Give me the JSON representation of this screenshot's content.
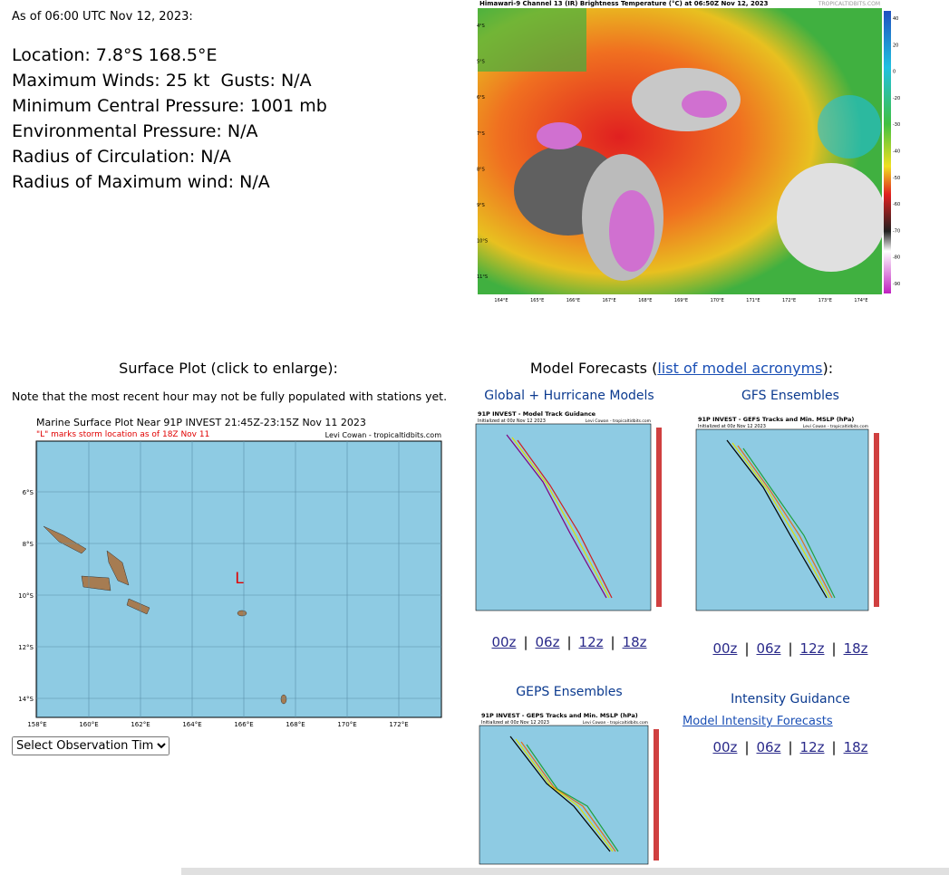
{
  "header": {
    "timestamp": "As of 06:00 UTC Nov 12, 2023:"
  },
  "storm_info": [
    "Location: 7.8°S 168.5°E",
    "Maximum Winds: 25 kt  Gusts: N/A",
    "Minimum Central Pressure: 1001 mb",
    "Environmental Pressure: N/A",
    "Radius of Circulation: N/A",
    "Radius of Maximum wind: N/A"
  ],
  "satellite": {
    "title": "Himawari-9 Channel 13 (IR) Brightness Temperature (°C) at 06:50Z Nov 12, 2023",
    "site": "TROPICALTIDBITS.COM",
    "lat_labels": [
      "4°S",
      "5°S",
      "6°S",
      "7°S",
      "8°S",
      "9°S",
      "10°S",
      "11°S"
    ],
    "lon_labels": [
      "164°E",
      "165°E",
      "166°E",
      "167°E",
      "168°E",
      "169°E",
      "170°E",
      "171°E",
      "172°E",
      "173°E",
      "174°E"
    ],
    "scale_labels": [
      "40",
      "20",
      "0",
      "-20",
      "-30",
      "-40",
      "-50",
      "-60",
      "-70",
      "-80",
      "-90"
    ]
  },
  "surface_plot": {
    "heading": "Surface Plot (click to enlarge):",
    "note": "Note that the most recent hour may not be fully populated with stations yet.",
    "title": "Marine Surface Plot Near 91P INVEST 21:45Z-23:15Z Nov 11 2023",
    "subtitle": "\"L\" marks storm location as of 18Z Nov 11",
    "credit": "Levi Cowan - tropicaltidbits.com",
    "marker": "L",
    "lat_labels": [
      "6°S",
      "8°S",
      "10°S",
      "12°S",
      "14°S"
    ],
    "lon_labels": [
      "158°E",
      "160°E",
      "162°E",
      "164°E",
      "166°E",
      "168°E",
      "170°E",
      "172°E"
    ],
    "select": "Select Observation Time..."
  },
  "model_forecasts": {
    "heading_prefix": "Model Forecasts (",
    "heading_link": "list of model acronyms",
    "heading_suffix": "):",
    "separator": "|",
    "panels": [
      {
        "heading": "Global + Hurricane Models",
        "title": "91P INVEST - Model Track Guidance",
        "subtitle": "Initialized at 00z Nov 12 2023",
        "credit": "Levi Cowan - tropicaltidbits.com",
        "links": [
          "00z",
          "06z",
          "12z",
          "18z"
        ]
      },
      {
        "heading": "GFS Ensembles",
        "title": "91P INVEST - GEFS Tracks and Min. MSLP (hPa)",
        "subtitle": "Initialized at 00z Nov 12 2023",
        "credit": "Levi Cowan - tropicaltidbits.com",
        "links": [
          "00z",
          "06z",
          "12z",
          "18z"
        ]
      },
      {
        "heading": "GEPS Ensembles",
        "title": "91P INVEST - GEPS Tracks and Min. MSLP (hPa)",
        "subtitle": "Initialized at 00z Nov 12 2023",
        "credit": "Levi Cowan - tropicaltidbits.com"
      }
    ],
    "intensity": {
      "heading": "Intensity Guidance",
      "link": "Model Intensity Forecasts",
      "links": [
        "00z",
        "06z",
        "12z",
        "18z"
      ]
    }
  }
}
